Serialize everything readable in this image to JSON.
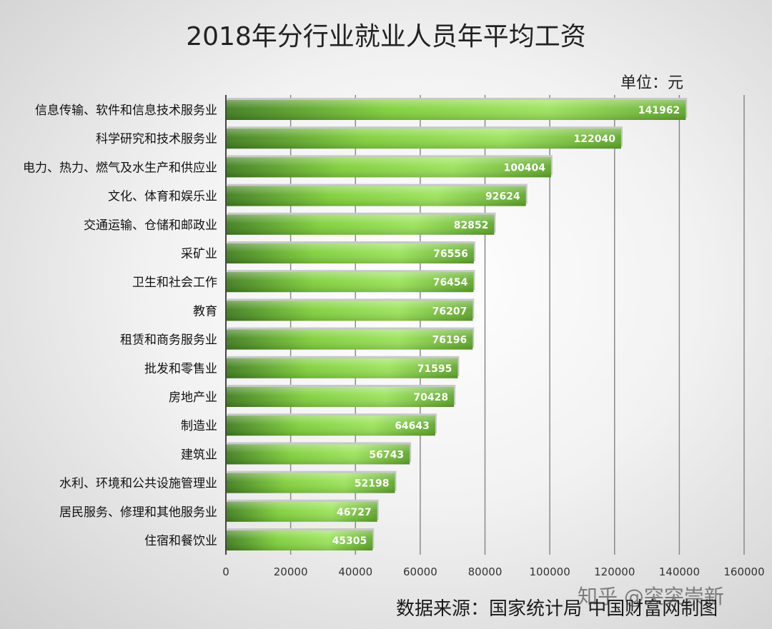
{
  "chart_data": {
    "type": "bar",
    "orientation": "horizontal",
    "title": "2018年分行业就业人员年平均工资",
    "unit": "单位：元",
    "categories": [
      "信息传输、软件和信息技术服务业",
      "科学研究和技术服务业",
      "电力、热力、燃气及水生产和供应业",
      "文化、体育和娱乐业",
      "交通运输、仓储和邮政业",
      "采矿业",
      "卫生和社会工作",
      "教育",
      "租赁和商务服务业",
      "批发和零售业",
      "房地产业",
      "制造业",
      "建筑业",
      "水利、环境和公共设施管理业",
      "居民服务、修理和其他服务业",
      "住宿和餐饮业"
    ],
    "values": [
      141962,
      122040,
      100404,
      92624,
      82852,
      76556,
      76454,
      76207,
      76196,
      71595,
      70428,
      64643,
      56743,
      52198,
      46727,
      45305
    ],
    "xlim": [
      0,
      160000
    ],
    "xticks": [
      0,
      20000,
      40000,
      60000,
      80000,
      100000,
      120000,
      140000,
      160000
    ],
    "grid": true,
    "bar_color": "#7fcf3a"
  },
  "footer": {
    "source": "数据来源：国家统计局 中国财富网制图",
    "watermark": "知乎 @突突崇新"
  }
}
